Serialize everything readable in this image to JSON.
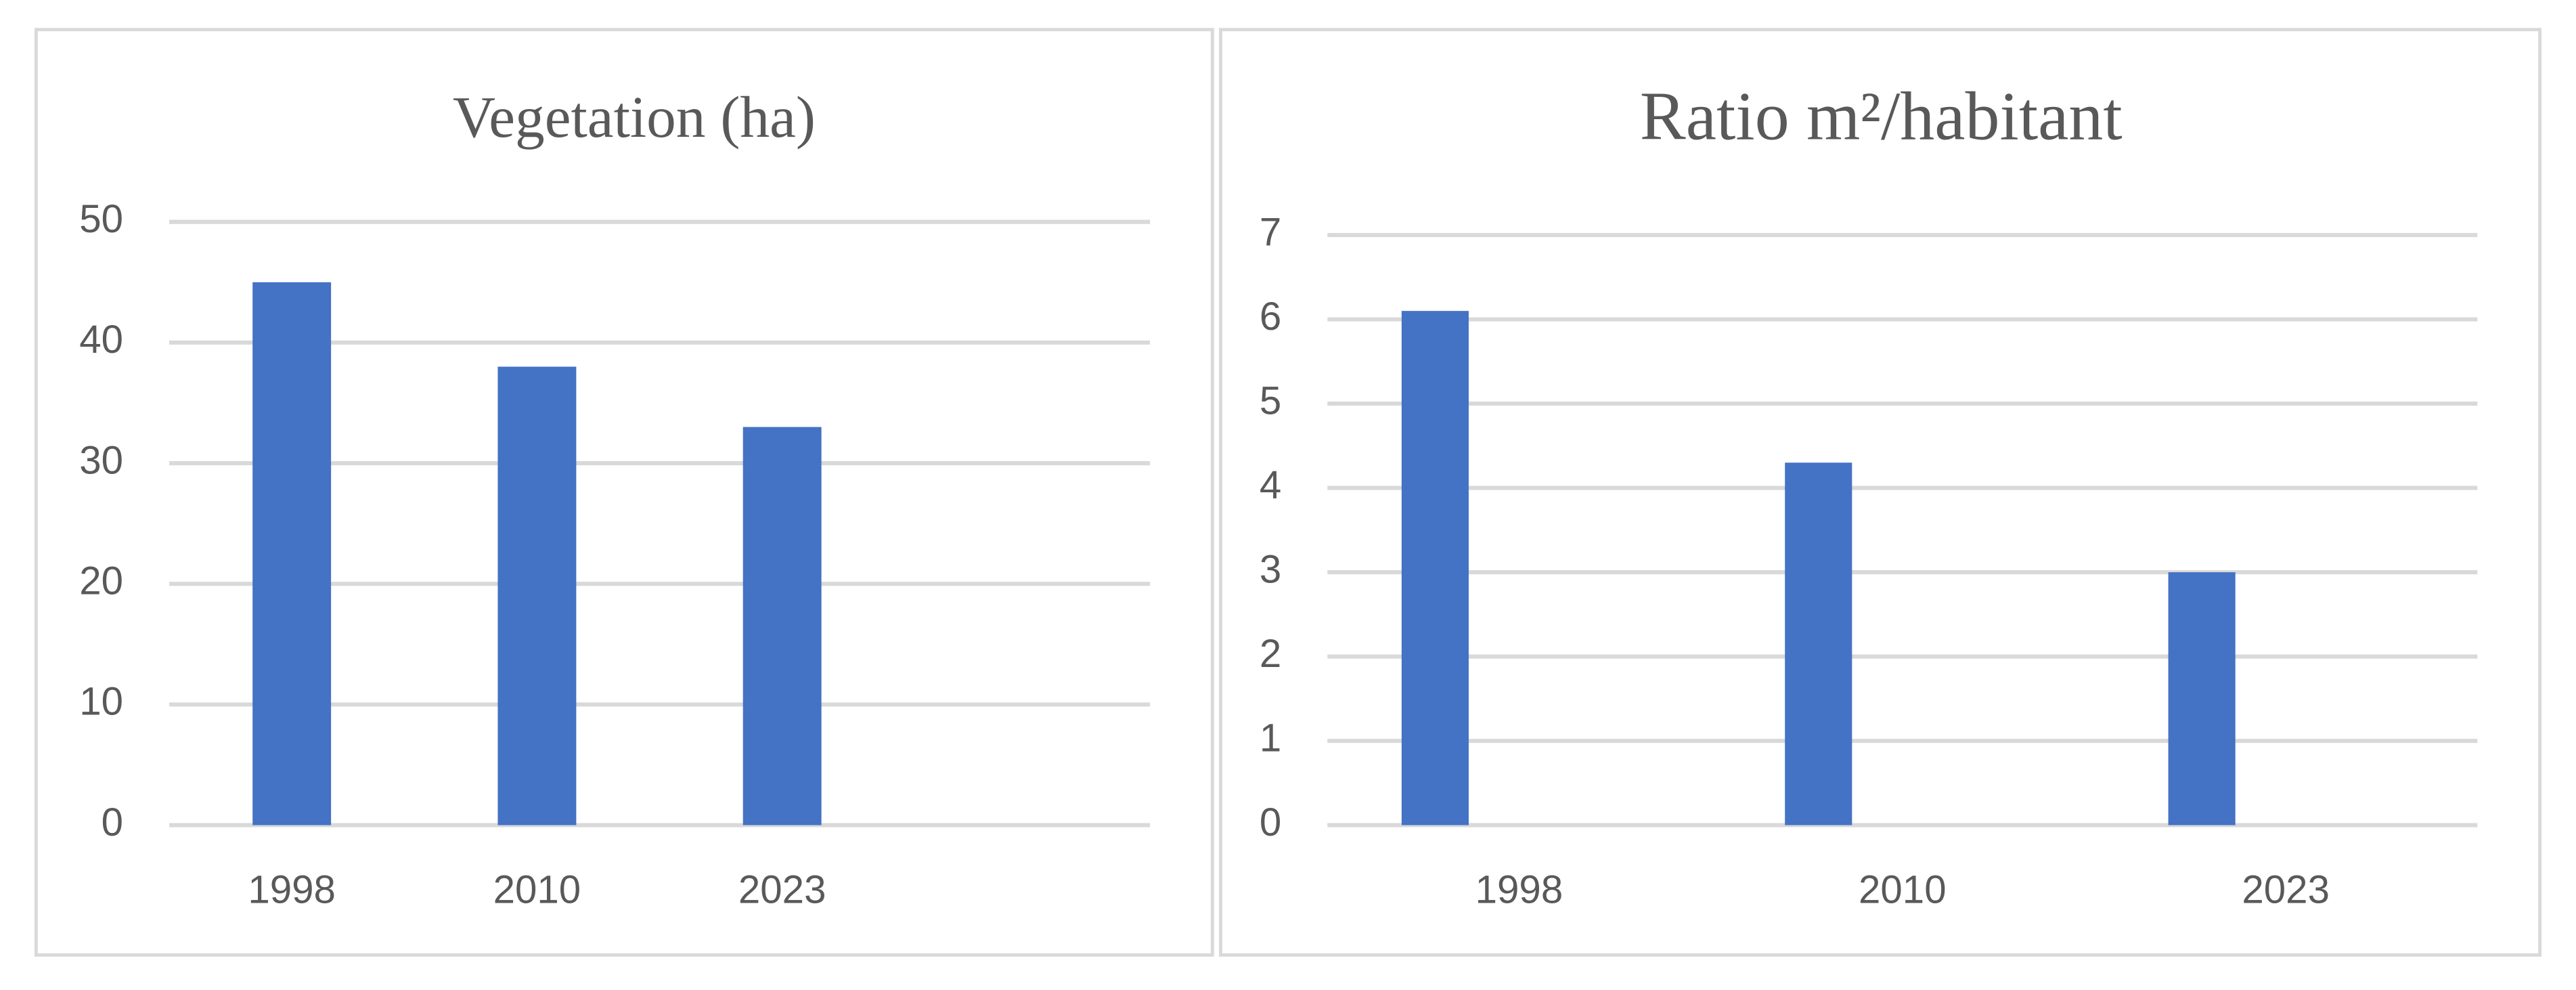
{
  "chart_data": [
    {
      "type": "bar",
      "title": "Vegetation (ha)",
      "categories": [
        "1998",
        "2010",
        "2023",
        null
      ],
      "values": [
        45,
        38,
        33,
        null
      ],
      "color": "#4472c4",
      "ylim": [
        0,
        50
      ],
      "yticks": [
        0,
        10,
        20,
        30,
        40,
        50
      ],
      "grid": true
    },
    {
      "type": "bar",
      "title": "Ratio m²/habitant",
      "categories": [
        "1998",
        "2010",
        "2023"
      ],
      "values": [
        6.1,
        4.3,
        3
      ],
      "color": "#4472c4",
      "ylim": [
        0,
        7
      ],
      "yticks": [
        0,
        1,
        2,
        3,
        4,
        5,
        6,
        7
      ],
      "grid": true
    }
  ]
}
